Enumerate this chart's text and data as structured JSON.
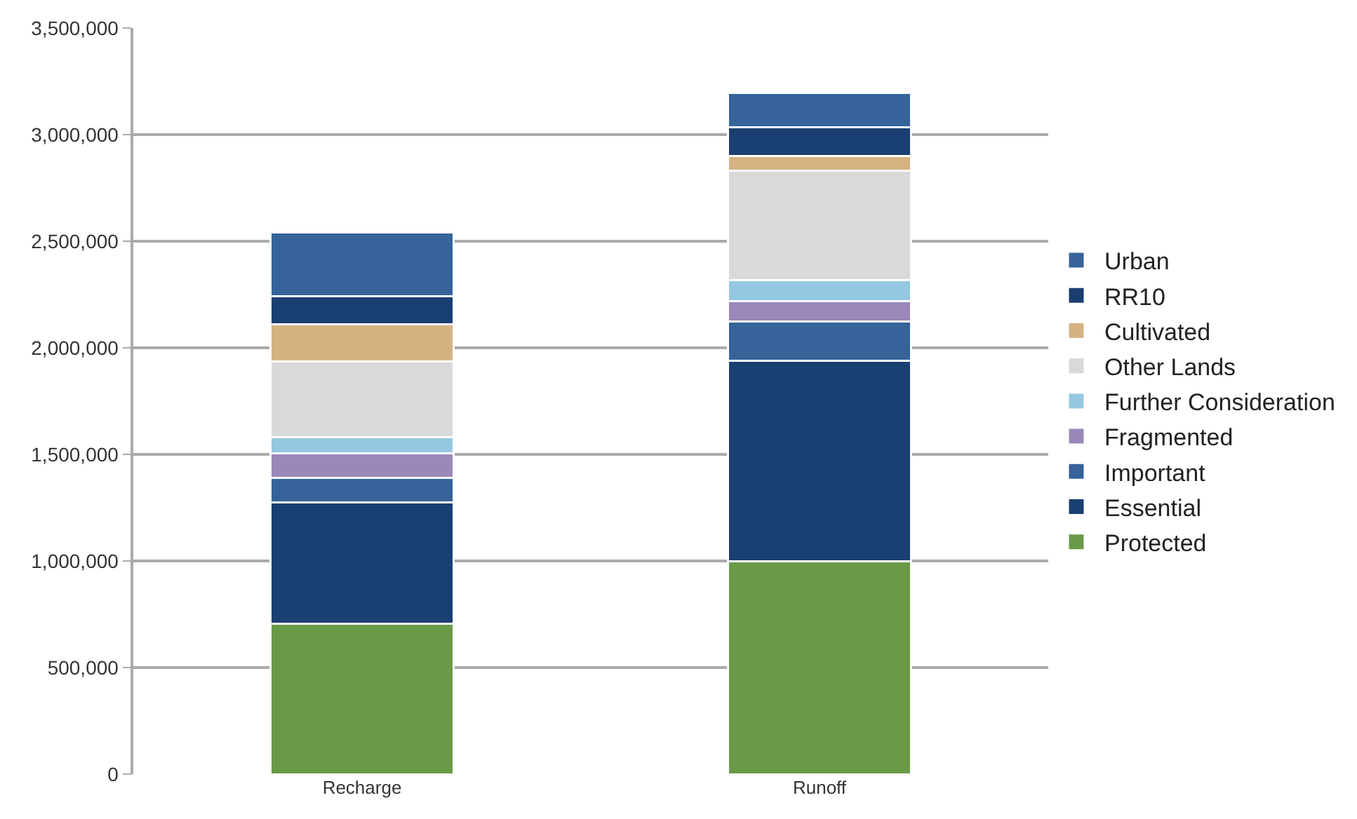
{
  "chart_data": {
    "type": "bar",
    "stacked": true,
    "categories": [
      "Recharge",
      "Runoff"
    ],
    "series": [
      {
        "name": "Protected",
        "color": "#6a9a48",
        "values": [
          706000,
          1000000
        ]
      },
      {
        "name": "Essential",
        "color": "#1a3f72",
        "values": [
          570000,
          939000
        ]
      },
      {
        "name": "Important",
        "color": "#35639a",
        "values": [
          114000,
          186000
        ]
      },
      {
        "name": "Fragmented",
        "color": "#9a88b8",
        "values": [
          115000,
          95000
        ]
      },
      {
        "name": "Further Consideration",
        "color": "#94c8e0",
        "values": [
          74000,
          98000
        ]
      },
      {
        "name": "Other Lands",
        "color": "#d9d9d9",
        "values": [
          358000,
          512000
        ]
      },
      {
        "name": "Cultivated",
        "color": "#d6b283",
        "values": [
          173000,
          71000
        ]
      },
      {
        "name": "RR10",
        "color": "#1a3f72",
        "values": [
          133000,
          132000
        ]
      },
      {
        "name": "Urban",
        "color": "#35639a",
        "values": [
          297000,
          164000
        ]
      }
    ],
    "ylim": [
      0,
      3500000
    ],
    "yticks": [
      {
        "value": 0,
        "label": "0"
      },
      {
        "value": 500000,
        "label": "500,000"
      },
      {
        "value": 1000000,
        "label": "1,000,000"
      },
      {
        "value": 1500000,
        "label": "1,500,000"
      },
      {
        "value": 2000000,
        "label": "2,000,000"
      },
      {
        "value": 2500000,
        "label": "2,500,000"
      },
      {
        "value": 3000000,
        "label": "3,000,000"
      },
      {
        "value": 3500000,
        "label": "3,500,000"
      }
    ],
    "grid": "y",
    "legend": "right"
  }
}
